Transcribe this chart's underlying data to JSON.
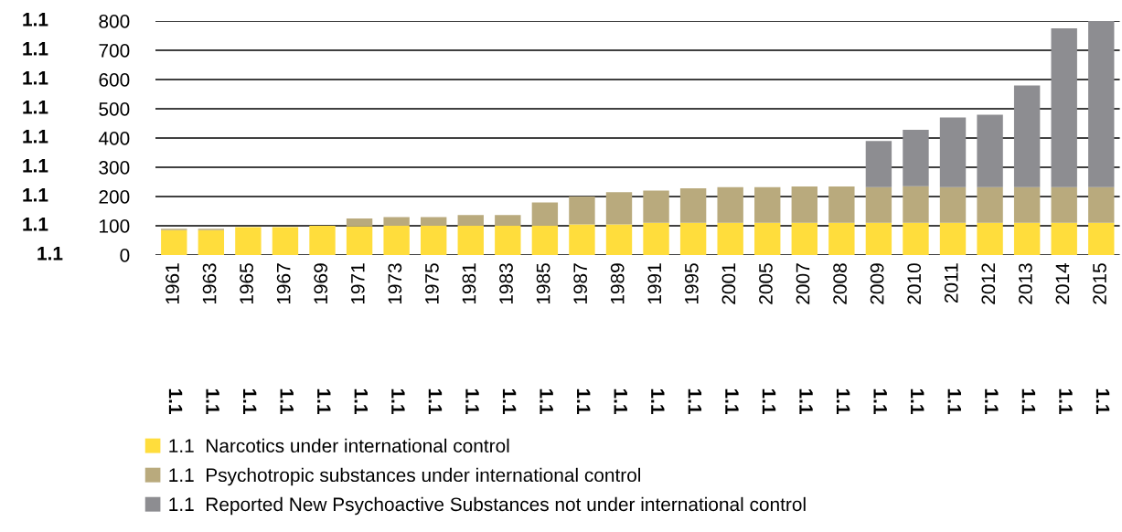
{
  "chart_data": {
    "type": "bar",
    "stacked": true,
    "grid": "y",
    "legend": "bottom",
    "categories": [
      "1961",
      "1963",
      "1965",
      "1967",
      "1969",
      "1971",
      "1973",
      "1975",
      "1981",
      "1983",
      "1985",
      "1987",
      "1989",
      "1991",
      "1995",
      "2001",
      "2005",
      "2007",
      "2008",
      "2009",
      "2010",
      "2011",
      "2012",
      "2013",
      "2014",
      "2015"
    ],
    "series": [
      {
        "name": "1.1  Narcotics under international control",
        "color": "#ffdd3c",
        "values": [
          85,
          85,
          95,
          95,
          100,
          98,
          100,
          100,
          100,
          100,
          100,
          105,
          105,
          110,
          110,
          110,
          110,
          110,
          110,
          110,
          110,
          110,
          110,
          110,
          110,
          110
        ]
      },
      {
        "name": "1.1  Psychotropic substances under international control",
        "color": "#b9aa7d",
        "values": [
          5,
          5,
          0,
          0,
          0,
          27,
          30,
          30,
          37,
          37,
          80,
          95,
          110,
          110,
          118,
          122,
          122,
          124,
          124,
          122,
          125,
          122,
          122,
          122,
          122,
          122
        ]
      },
      {
        "name": "1.1  Reported New Psychoactive Substances not under international control",
        "color": "#8d8d91",
        "values": [
          0,
          0,
          0,
          0,
          0,
          0,
          0,
          0,
          0,
          0,
          0,
          0,
          0,
          0,
          0,
          0,
          0,
          0,
          0,
          158,
          193,
          238,
          248,
          348,
          543,
          568
        ]
      }
    ],
    "ylim": [
      0,
      800
    ],
    "yticks": [
      0,
      100,
      200,
      300,
      400,
      500,
      600,
      700,
      800
    ],
    "annotations": [
      "1.1",
      "1.1",
      "1.1",
      "1.1",
      "1.1",
      "1.1",
      "1.1",
      "1.1",
      "1.1",
      "1.1",
      "1.1",
      "1.1",
      "1.1",
      "1.1",
      "1.1",
      "1.1",
      "1.1",
      "1.1",
      "1.1",
      "1.1",
      "1.1",
      "1.1",
      "1.1",
      "1.1",
      "1.1",
      "1.1",
      "1.1",
      "1.1",
      "1.1",
      "1.1",
      "1.1",
      "1.1",
      "1.1",
      "1.1",
      "1.1"
    ]
  }
}
